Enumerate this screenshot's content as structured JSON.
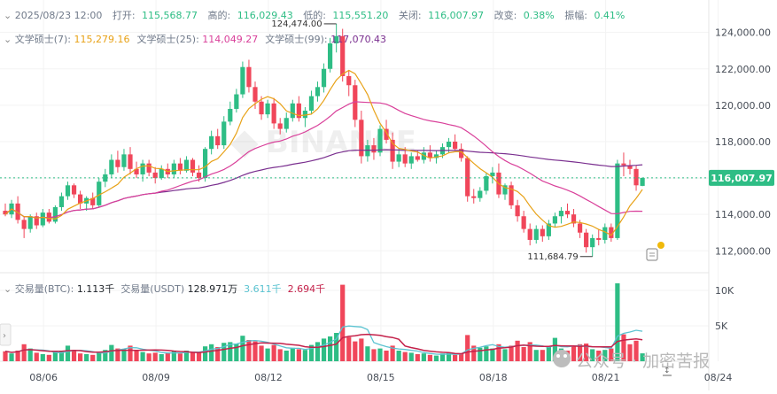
{
  "header": {
    "date": "2025/08/23 12:00",
    "fields": [
      {
        "label": "打开:",
        "value": "115,568.77"
      },
      {
        "label": "高的:",
        "value": "116,029.43"
      },
      {
        "label": "低的:",
        "value": "115,551.20"
      },
      {
        "label": "关闭:",
        "value": "116,007.97"
      },
      {
        "label": "改变:",
        "value": "0.38%"
      },
      {
        "label": "振幅:",
        "value": "0.41%"
      }
    ]
  },
  "ma_legend": [
    {
      "label": "文学硕士(7):",
      "value": "115,279.16",
      "color": "#e8a218"
    },
    {
      "label": "文学硕士(25):",
      "value": "114,049.27",
      "color": "#d9409a"
    },
    {
      "label": "文学硕士(99):",
      "value": "117,070.43",
      "color": "#7a2f8f"
    }
  ],
  "vol_legend": {
    "label1": "交易量(BTC):",
    "value1": "1.113千",
    "label2": "交易量(USDT)",
    "value2": "128.971万",
    "value3": "3.611千",
    "value4": "2.694千"
  },
  "last_price_tag": "116,007.97",
  "max_label": "124,474.00",
  "min_label": "111,684.79",
  "watermark_text": "公众号 · 加密苦报",
  "colors": {
    "up": "#2ebd85",
    "down": "#f0465a",
    "ma7": "#e8a218",
    "ma25": "#d9409a",
    "ma99": "#7a2f8f",
    "vol_ma1": "#5bc3d1",
    "vol_ma2": "#c4214a"
  },
  "chart_data": {
    "type": "candlestick",
    "interval": "4h",
    "price_ticks": [
      "124,000.00",
      "122,000.00",
      "120,000.00",
      "118,000.00",
      "116,000.00",
      "114,000.00",
      "112,000.00"
    ],
    "price_tick_values": [
      124000,
      122000,
      120000,
      118000,
      116000,
      114000,
      112000
    ],
    "price_range": [
      110700,
      125200
    ],
    "volume_ticks": [
      "10K",
      "5K"
    ],
    "volume_tick_values": [
      10000,
      5000
    ],
    "volume_max": 11000,
    "x_ticks": [
      "08/06",
      "08/09",
      "08/12",
      "08/15",
      "08/18",
      "08/21",
      "08/24"
    ],
    "candles": [
      [
        114200,
        114600,
        113900,
        114000
      ],
      [
        114000,
        114800,
        113800,
        114600
      ],
      [
        114600,
        115000,
        113500,
        113700
      ],
      [
        113700,
        113900,
        112700,
        113200
      ],
      [
        113200,
        114000,
        113000,
        113900
      ],
      [
        113900,
        114100,
        113200,
        113400
      ],
      [
        113400,
        114300,
        113300,
        114100
      ],
      [
        114100,
        114300,
        113500,
        113600
      ],
      [
        113600,
        114500,
        113500,
        114400
      ],
      [
        114400,
        115200,
        114200,
        115000
      ],
      [
        115000,
        115800,
        114800,
        115600
      ],
      [
        115600,
        115700,
        114900,
        115100
      ],
      [
        115100,
        115300,
        114300,
        114600
      ],
      [
        114600,
        115000,
        114200,
        114900
      ],
      [
        114900,
        115200,
        114300,
        114500
      ],
      [
        114500,
        116000,
        114400,
        115800
      ],
      [
        115800,
        116500,
        115500,
        116200
      ],
      [
        116200,
        117300,
        116000,
        117000
      ],
      [
        117000,
        117500,
        116300,
        116600
      ],
      [
        116600,
        117600,
        116400,
        117300
      ],
      [
        117300,
        117700,
        116200,
        116500
      ],
      [
        116500,
        116900,
        116000,
        116200
      ],
      [
        116200,
        117000,
        115800,
        116800
      ],
      [
        116800,
        117000,
        116100,
        116300
      ],
      [
        116300,
        116600,
        115700,
        116000
      ],
      [
        116000,
        116700,
        115900,
        116500
      ],
      [
        116500,
        116800,
        116000,
        116200
      ],
      [
        116200,
        117000,
        116000,
        116800
      ],
      [
        116800,
        117100,
        116200,
        116400
      ],
      [
        116400,
        117200,
        116300,
        117000
      ],
      [
        117000,
        117100,
        116100,
        116300
      ],
      [
        116300,
        116700,
        115800,
        116000
      ],
      [
        116000,
        117700,
        115800,
        117600
      ],
      [
        117600,
        118600,
        117300,
        118300
      ],
      [
        118300,
        118700,
        117600,
        117800
      ],
      [
        117800,
        119400,
        117600,
        119100
      ],
      [
        119100,
        120200,
        118900,
        119800
      ],
      [
        119800,
        120900,
        119600,
        120600
      ],
      [
        120600,
        122400,
        120400,
        122100
      ],
      [
        122100,
        122500,
        120700,
        121000
      ],
      [
        121000,
        121300,
        119800,
        120200
      ],
      [
        120200,
        120500,
        119200,
        119500
      ],
      [
        119500,
        120300,
        119300,
        120100
      ],
      [
        120100,
        120400,
        118700,
        119000
      ],
      [
        119000,
        119300,
        118400,
        118700
      ],
      [
        118700,
        119600,
        118500,
        119300
      ],
      [
        119300,
        120300,
        119100,
        120100
      ],
      [
        120100,
        120500,
        119100,
        119300
      ],
      [
        119300,
        119900,
        118800,
        119700
      ],
      [
        119700,
        120800,
        119500,
        120500
      ],
      [
        120500,
        121300,
        120200,
        121000
      ],
      [
        121000,
        122300,
        120700,
        122000
      ],
      [
        122000,
        123700,
        121800,
        123400
      ],
      [
        123400,
        124474,
        122900,
        123800
      ],
      [
        123800,
        124200,
        121300,
        121600
      ],
      [
        121600,
        121900,
        120500,
        121100
      ],
      [
        121100,
        121400,
        118800,
        119200
      ],
      [
        119200,
        119700,
        116800,
        117200
      ],
      [
        117200,
        118100,
        116900,
        117800
      ],
      [
        117800,
        118200,
        117000,
        117400
      ],
      [
        117400,
        118900,
        117200,
        118700
      ],
      [
        118700,
        119200,
        117900,
        118100
      ],
      [
        118100,
        118500,
        116500,
        116900
      ],
      [
        116900,
        117600,
        116600,
        117300
      ],
      [
        117300,
        117700,
        116600,
        116800
      ],
      [
        116800,
        117400,
        116500,
        117200
      ],
      [
        117200,
        117500,
        116900,
        117000
      ],
      [
        117000,
        117700,
        116800,
        117400
      ],
      [
        117400,
        117800,
        116900,
        117100
      ],
      [
        117100,
        117500,
        116800,
        117300
      ],
      [
        117300,
        117900,
        117100,
        117700
      ],
      [
        117700,
        118200,
        117400,
        118000
      ],
      [
        118000,
        118400,
        117500,
        117600
      ],
      [
        117600,
        117900,
        116900,
        117100
      ],
      [
        117100,
        117200,
        114700,
        115000
      ],
      [
        115000,
        115400,
        114600,
        114900
      ],
      [
        114900,
        115500,
        114700,
        115300
      ],
      [
        115300,
        116300,
        115100,
        116100
      ],
      [
        116100,
        116600,
        115700,
        116300
      ],
      [
        116300,
        116800,
        114900,
        115100
      ],
      [
        115100,
        115700,
        114800,
        115600
      ],
      [
        115600,
        115800,
        114300,
        114500
      ],
      [
        114500,
        114800,
        113600,
        113900
      ],
      [
        113900,
        114200,
        113000,
        113200
      ],
      [
        113200,
        113500,
        112300,
        112600
      ],
      [
        112600,
        113400,
        112400,
        113200
      ],
      [
        113200,
        113400,
        112500,
        112800
      ],
      [
        112800,
        113700,
        112600,
        113500
      ],
      [
        113500,
        114100,
        113300,
        113900
      ],
      [
        113900,
        114400,
        113500,
        114200
      ],
      [
        114200,
        114600,
        113800,
        114000
      ],
      [
        114000,
        114300,
        113300,
        113500
      ],
      [
        113500,
        113700,
        112700,
        113000
      ],
      [
        113000,
        113200,
        111900,
        112200
      ],
      [
        112200,
        112900,
        111685,
        112700
      ],
      [
        112700,
        113200,
        112300,
        112600
      ],
      [
        112600,
        113500,
        112400,
        113300
      ],
      [
        113300,
        113500,
        112500,
        112700
      ],
      [
        112700,
        117000,
        112600,
        116800
      ],
      [
        116800,
        117400,
        116100,
        116700
      ],
      [
        116700,
        117000,
        116200,
        116500
      ],
      [
        116500,
        116700,
        115300,
        115600
      ],
      [
        115569,
        116029,
        115551,
        116008
      ]
    ],
    "volumes": [
      1400,
      1100,
      1500,
      2400,
      1800,
      1200,
      1000,
      900,
      1300,
      1500,
      2200,
      1600,
      1100,
      1000,
      900,
      1300,
      1600,
      2300,
      1800,
      1700,
      2200,
      1500,
      1300,
      1100,
      1200,
      1000,
      1200,
      1400,
      1100,
      1500,
      1300,
      1200,
      2100,
      2400,
      2000,
      2600,
      2700,
      2500,
      3600,
      3000,
      2800,
      2200,
      1800,
      2300,
      1700,
      1500,
      1900,
      1700,
      1600,
      2300,
      2700,
      3200,
      3500,
      4000,
      10800,
      3400,
      2800,
      3200,
      2100,
      1700,
      1800,
      1500,
      2200,
      1500,
      1300,
      1200,
      1000,
      1100,
      900,
      800,
      1100,
      1200,
      900,
      1100,
      3700,
      2200,
      1900,
      2100,
      1800,
      2400,
      1700,
      2200,
      2900,
      2000,
      2700,
      1600,
      1600,
      2000,
      3300,
      1800,
      1500,
      2100,
      2400,
      2500,
      1700,
      1500,
      1600,
      1800,
      11000,
      3800,
      2400,
      2900,
      1113
    ]
  }
}
